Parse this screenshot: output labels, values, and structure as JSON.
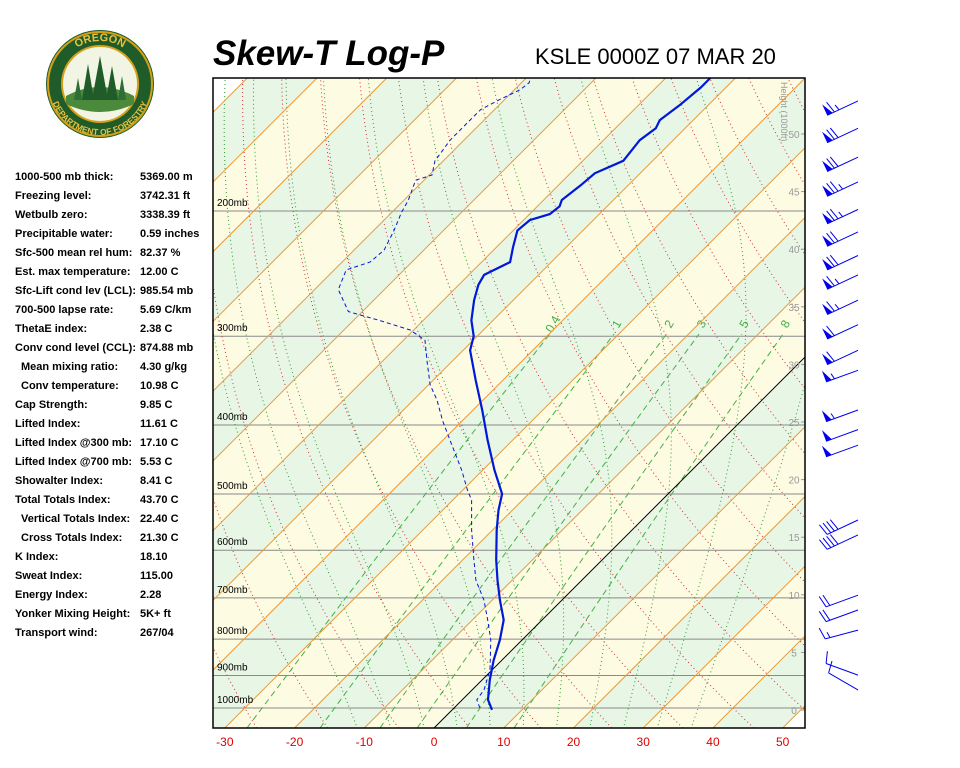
{
  "logo": {
    "top": "OREGON",
    "bottom": "DEPARTMENT OF FORESTRY"
  },
  "header": {
    "title": "Skew-T Log-P",
    "station": "KSLE 0000Z 07 MAR 20"
  },
  "indices": [
    {
      "label": "1000-500 mb thick:",
      "value": "5369.00 m"
    },
    {
      "label": "Freezing level:",
      "value": "3742.31 ft"
    },
    {
      "label": "Wetbulb zero:",
      "value": "3338.39 ft"
    },
    {
      "label": "Precipitable water:",
      "value": "0.59 inches"
    },
    {
      "label": "Sfc-500 mean rel hum:",
      "value": "82.37 %"
    },
    {
      "label": "Est. max temperature:",
      "value": "12.00 C"
    },
    {
      "label": "Sfc-Lift cond lev (LCL):",
      "value": "985.54 mb"
    },
    {
      "label": "700-500 lapse rate:",
      "value": "5.69 C/km"
    },
    {
      "label": "ThetaE index:",
      "value": "2.38 C"
    },
    {
      "label": "Conv cond level (CCL):",
      "value": "874.88 mb"
    },
    {
      "label": "Mean mixing ratio:",
      "value": "4.30 g/kg"
    },
    {
      "label": "Conv temperature:",
      "value": "10.98 C"
    },
    {
      "label": "Cap Strength:",
      "value": "9.85 C"
    },
    {
      "label": "Lifted Index:",
      "value": "11.61 C"
    },
    {
      "label": "Lifted Index @300 mb:",
      "value": "17.10 C"
    },
    {
      "label": "Lifted Index @700 mb:",
      "value": "5.53 C"
    },
    {
      "label": "Showalter Index:",
      "value": "8.41 C"
    },
    {
      "label": "Total Totals Index:",
      "value": "43.70 C"
    },
    {
      "label": "Vertical Totals Index:",
      "value": "22.40 C"
    },
    {
      "label": "Cross Totals Index:",
      "value": "21.30 C"
    },
    {
      "label": "K Index:",
      "value": "18.10"
    },
    {
      "label": "Sweat Index:",
      "value": "115.00"
    },
    {
      "label": "Energy Index:",
      "value": "2.28"
    },
    {
      "label": "Yonker Mixing Height:",
      "value": "5K+ ft"
    },
    {
      "label": "Transport wind:",
      "value": "267/04"
    }
  ],
  "chart_data": {
    "type": "skewt",
    "xlim": [
      -31.7,
      53.2
    ],
    "xticks": [
      -30,
      -20,
      -10,
      0,
      10,
      20,
      30,
      40,
      50
    ],
    "ylim": [
      1067,
      130
    ],
    "log_y": true,
    "yticks": [
      {
        "value": 1000,
        "label": "1000mb"
      },
      {
        "value": 900,
        "label": "900mb"
      },
      {
        "value": 800,
        "label": "800mb"
      },
      {
        "value": 700,
        "label": "700mb"
      },
      {
        "value": 600,
        "label": "600mb"
      },
      {
        "value": 500,
        "label": "500mb"
      },
      {
        "value": 400,
        "label": "400mb"
      },
      {
        "value": 300,
        "label": "300mb"
      },
      {
        "value": 200,
        "label": "200mb"
      }
    ],
    "y2label": "Height (1000ft)",
    "y2lim": [
      -1.56,
      54.86
    ],
    "y2ticks": [
      0,
      5,
      10,
      15,
      20,
      25,
      30,
      35,
      40,
      45,
      50
    ],
    "isotherms": [
      -120,
      -110,
      -100,
      -90,
      -80,
      -70,
      -60,
      -50,
      -40,
      -30,
      -20,
      -10,
      0,
      10,
      20,
      30,
      40,
      50
    ],
    "isotherm_color": "#e89a3c",
    "band_colors": [
      "#e8f6e6",
      "#fdfbe2"
    ],
    "dry_adiabats": [
      -30,
      -20,
      -10,
      0,
      10,
      20,
      30,
      40,
      50,
      60,
      70,
      80,
      90,
      100,
      110,
      120,
      130,
      140,
      150,
      160,
      170
    ],
    "dry_adiabat_color": "#cc3333",
    "moist_adiabats": [
      -15,
      -10,
      -5,
      0,
      5,
      10,
      15,
      20,
      25,
      30,
      35
    ],
    "moist_adiabat_color": "#339933",
    "mixing_ratios": [
      0.4,
      1,
      2,
      3,
      5,
      8
    ],
    "mixing_ratio_color": "#44b044",
    "series": [
      {
        "color": "#0018d8",
        "dashed": false,
        "pressure": [
          1006,
          974,
          913,
          856,
          802,
          752,
          705,
          661,
          619,
          562,
          527,
          500,
          463,
          420,
          381,
          346,
          314,
          300,
          285,
          267,
          254,
          246,
          236,
          225,
          213,
          206,
          202,
          197,
          193,
          184,
          177,
          170,
          159,
          153,
          149,
          142,
          134,
          130
        ],
        "values": [
          5.7,
          3.7,
          1.1,
          -1.2,
          -3.2,
          -5.5,
          -8.9,
          -12.1,
          -15.2,
          -19.4,
          -22.0,
          -23.8,
          -28.3,
          -33.6,
          -38.7,
          -43.9,
          -49.0,
          -50.5,
          -53.1,
          -55.6,
          -57.2,
          -57.8,
          -55.9,
          -57.6,
          -59.4,
          -59.1,
          -57.1,
          -56.8,
          -57.4,
          -56.8,
          -56.5,
          -54.2,
          -54.8,
          -54.2,
          -54.8,
          -54.1,
          -53.6,
          -53.6
        ]
      },
      {
        "color": "#0018d8",
        "dashed": true,
        "pressure": [
          1000,
          974,
          943,
          884,
          802,
          752,
          705,
          661,
          619,
          562,
          510,
          494,
          463,
          420,
          394,
          369,
          351,
          324,
          304,
          294,
          285,
          277,
          258,
          242,
          236,
          227,
          213,
          201,
          193,
          181,
          178,
          170,
          159,
          149,
          144,
          140,
          135,
          132,
          130
        ],
        "values": [
          3.7,
          2.1,
          1.7,
          -0.3,
          -4.5,
          -7.8,
          -11.2,
          -15.2,
          -18.4,
          -23.0,
          -27.3,
          -29.3,
          -33.0,
          -39.0,
          -42.9,
          -46.6,
          -49.8,
          -53.8,
          -56.9,
          -60.5,
          -66.3,
          -72.0,
          -76.6,
          -78.3,
          -76.0,
          -75.7,
          -77.1,
          -78.6,
          -79.4,
          -81.2,
          -79.6,
          -81.2,
          -82.0,
          -82.0,
          -82.0,
          -80.9,
          -79.2,
          -78.9,
          -79.4
        ]
      }
    ],
    "winds": {
      "color": "#0000ee",
      "pressure": [
        140,
        153,
        168,
        182,
        199,
        214,
        231,
        246,
        267,
        289,
        314,
        335,
        381,
        406,
        427,
        544,
        571,
        694,
        728,
        777,
        899,
        943
      ],
      "direction": [
        245,
        245,
        245,
        245,
        245,
        245,
        245,
        245,
        245,
        245,
        245,
        250,
        250,
        250,
        250,
        245,
        245,
        250,
        250,
        255,
        290,
        300
      ],
      "speed": [
        65,
        70,
        70,
        75,
        75,
        70,
        70,
        65,
        65,
        60,
        60,
        55,
        55,
        50,
        50,
        40,
        40,
        20,
        20,
        15,
        10,
        10
      ]
    }
  }
}
